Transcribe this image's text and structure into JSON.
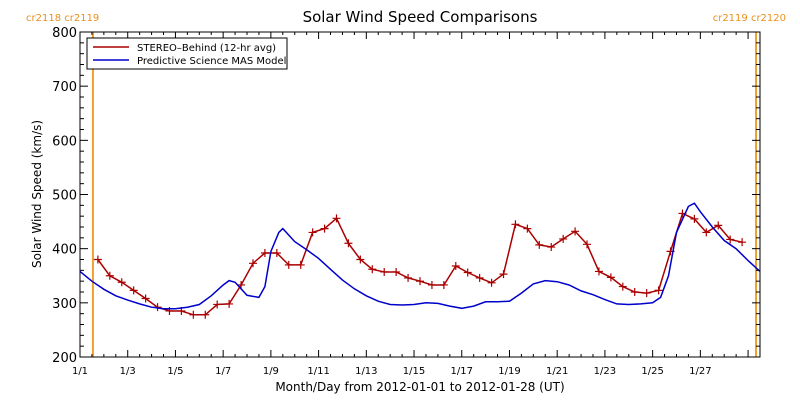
{
  "chart_data": {
    "type": "line",
    "title": "Solar Wind Speed Comparisons",
    "xlabel": "Month/Day from 2012-01-01 to 2012-01-28 (UT)",
    "ylabel": "Solar Wind Speed (km/s)",
    "xlim": [
      "2012-01-01",
      "2012-01-29T12:00"
    ],
    "ylim": [
      200,
      800
    ],
    "x_ticks": [
      "1/1",
      "1/3",
      "1/5",
      "1/7",
      "1/9",
      "1/11",
      "1/13",
      "1/15",
      "1/17",
      "1/19",
      "1/21",
      "1/23",
      "1/25",
      "1/27"
    ],
    "y_ticks": [
      200,
      300,
      400,
      500,
      600,
      700,
      800
    ],
    "grid": false,
    "legend_position": "top-left",
    "carrington_markers": [
      {
        "x": "2012-01-01T13:00",
        "left_label": "cr2118",
        "right_label": "cr2119",
        "side": "left",
        "color": "#f0a030"
      },
      {
        "x": "2012-01-29T08:00",
        "left_label": "cr2119",
        "right_label": "cr2120",
        "side": "right",
        "color": "#f0a030"
      }
    ],
    "series": [
      {
        "name": "STEREO–Behind (12-hr avg)",
        "color": "#aa0000",
        "marker": "plus",
        "points": [
          [
            "2012-01-01T18:00",
            380
          ],
          [
            "2012-01-02T06:00",
            350
          ],
          [
            "2012-01-02T18:00",
            338
          ],
          [
            "2012-01-03T06:00",
            323
          ],
          [
            "2012-01-03T18:00",
            308
          ],
          [
            "2012-01-04T06:00",
            292
          ],
          [
            "2012-01-04T18:00",
            285
          ],
          [
            "2012-01-05T06:00",
            285
          ],
          [
            "2012-01-05T18:00",
            278
          ],
          [
            "2012-01-06T06:00",
            278
          ],
          [
            "2012-01-06T18:00",
            297
          ],
          [
            "2012-01-07T06:00",
            298
          ],
          [
            "2012-01-07T18:00",
            333
          ],
          [
            "2012-01-08T06:00",
            373
          ],
          [
            "2012-01-08T18:00",
            392
          ],
          [
            "2012-01-09T06:00",
            392
          ],
          [
            "2012-01-09T18:00",
            370
          ],
          [
            "2012-01-10T06:00",
            370
          ],
          [
            "2012-01-10T18:00",
            430
          ],
          [
            "2012-01-11T06:00",
            437
          ],
          [
            "2012-01-11T18:00",
            456
          ],
          [
            "2012-01-12T06:00",
            410
          ],
          [
            "2012-01-12T18:00",
            380
          ],
          [
            "2012-01-13T06:00",
            362
          ],
          [
            "2012-01-13T18:00",
            357
          ],
          [
            "2012-01-14T06:00",
            357
          ],
          [
            "2012-01-14T18:00",
            346
          ],
          [
            "2012-01-15T06:00",
            340
          ],
          [
            "2012-01-15T18:00",
            333
          ],
          [
            "2012-01-16T06:00",
            333
          ],
          [
            "2012-01-16T18:00",
            368
          ],
          [
            "2012-01-17T06:00",
            356
          ],
          [
            "2012-01-17T18:00",
            346
          ],
          [
            "2012-01-18T06:00",
            337
          ],
          [
            "2012-01-18T18:00",
            353
          ],
          [
            "2012-01-19T06:00",
            445
          ],
          [
            "2012-01-19T18:00",
            437
          ],
          [
            "2012-01-20T06:00",
            407
          ],
          [
            "2012-01-20T18:00",
            403
          ],
          [
            "2012-01-21T06:00",
            418
          ],
          [
            "2012-01-21T18:00",
            432
          ],
          [
            "2012-01-22T06:00",
            408
          ],
          [
            "2012-01-22T18:00",
            358
          ],
          [
            "2012-01-23T06:00",
            347
          ],
          [
            "2012-01-23T18:00",
            330
          ],
          [
            "2012-01-24T06:00",
            320
          ],
          [
            "2012-01-24T18:00",
            318
          ],
          [
            "2012-01-25T06:00",
            323
          ],
          [
            "2012-01-25T18:00",
            395
          ],
          [
            "2012-01-26T06:00",
            465
          ],
          [
            "2012-01-26T18:00",
            455
          ],
          [
            "2012-01-27T06:00",
            430
          ],
          [
            "2012-01-27T18:00",
            443
          ],
          [
            "2012-01-28T06:00",
            417
          ],
          [
            "2012-01-28T18:00",
            412
          ]
        ]
      },
      {
        "name": "Predictive Science MAS Model",
        "color": "#0000cc",
        "marker": "none",
        "points": [
          [
            "2012-01-01",
            358
          ],
          [
            "2012-01-01T12:00",
            340
          ],
          [
            "2012-01-02",
            325
          ],
          [
            "2012-01-02T12:00",
            313
          ],
          [
            "2012-01-03",
            305
          ],
          [
            "2012-01-03T12:00",
            298
          ],
          [
            "2012-01-04",
            292
          ],
          [
            "2012-01-04T12:00",
            289
          ],
          [
            "2012-01-05",
            289
          ],
          [
            "2012-01-05T12:00",
            292
          ],
          [
            "2012-01-06",
            297
          ],
          [
            "2012-01-06T12:00",
            313
          ],
          [
            "2012-01-07",
            333
          ],
          [
            "2012-01-07T06:00",
            341
          ],
          [
            "2012-01-07T12:00",
            338
          ],
          [
            "2012-01-08",
            314
          ],
          [
            "2012-01-08T12:00",
            310
          ],
          [
            "2012-01-08T18:00",
            330
          ],
          [
            "2012-01-09",
            395
          ],
          [
            "2012-01-09T08:00",
            430
          ],
          [
            "2012-01-09T12:00",
            437
          ],
          [
            "2012-01-10",
            413
          ],
          [
            "2012-01-10T12:00",
            398
          ],
          [
            "2012-01-11",
            382
          ],
          [
            "2012-01-11T12:00",
            362
          ],
          [
            "2012-01-12",
            342
          ],
          [
            "2012-01-12T12:00",
            326
          ],
          [
            "2012-01-13",
            313
          ],
          [
            "2012-01-13T12:00",
            303
          ],
          [
            "2012-01-14",
            297
          ],
          [
            "2012-01-14T12:00",
            296
          ],
          [
            "2012-01-15",
            297
          ],
          [
            "2012-01-15T12:00",
            300
          ],
          [
            "2012-01-16",
            299
          ],
          [
            "2012-01-16T12:00",
            294
          ],
          [
            "2012-01-17",
            290
          ],
          [
            "2012-01-17T12:00",
            294
          ],
          [
            "2012-01-18",
            302
          ],
          [
            "2012-01-18T12:00",
            302
          ],
          [
            "2012-01-19",
            303
          ],
          [
            "2012-01-19T12:00",
            318
          ],
          [
            "2012-01-20",
            335
          ],
          [
            "2012-01-20T12:00",
            341
          ],
          [
            "2012-01-21",
            339
          ],
          [
            "2012-01-21T12:00",
            333
          ],
          [
            "2012-01-22",
            322
          ],
          [
            "2012-01-22T12:00",
            315
          ],
          [
            "2012-01-23",
            306
          ],
          [
            "2012-01-23T12:00",
            298
          ],
          [
            "2012-01-24",
            297
          ],
          [
            "2012-01-24T12:00",
            298
          ],
          [
            "2012-01-25",
            300
          ],
          [
            "2012-01-25T08:00",
            310
          ],
          [
            "2012-01-25T16:00",
            350
          ],
          [
            "2012-01-26",
            430
          ],
          [
            "2012-01-26T12:00",
            478
          ],
          [
            "2012-01-26T18:00",
            484
          ],
          [
            "2012-01-27",
            468
          ],
          [
            "2012-01-27T12:00",
            440
          ],
          [
            "2012-01-28",
            415
          ],
          [
            "2012-01-28T12:00",
            400
          ],
          [
            "2012-01-29",
            378
          ],
          [
            "2012-01-29T12:00",
            358
          ]
        ]
      }
    ]
  }
}
